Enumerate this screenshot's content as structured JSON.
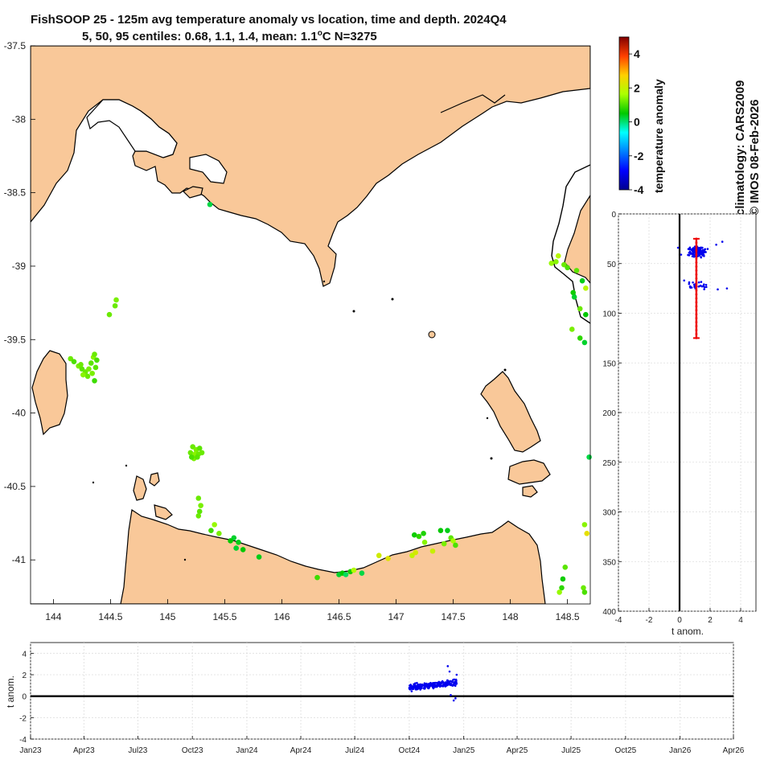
{
  "title": {
    "line1": "FishSOOP 25 - 125m avg temperature anomaly vs location, time and depth. 2024Q4",
    "line2": "5, 50, 95 centiles: 0.68, 1.1, 1.4, mean: 1.1",
    "line2_sup": "o",
    "line2_tail": "C N=3275"
  },
  "side_text": {
    "climatology": "climatology: CARS2009",
    "credit": "© IMOS 08-Feb-2026"
  },
  "colors": {
    "land": "#f9c899",
    "coast": "#000000",
    "series": "#0000ee",
    "median_bar": "#ee0000"
  },
  "chart_data": [
    {
      "id": "map",
      "type": "scatter",
      "title": "FishSOOP 25 - 125m avg temperature anomaly vs location",
      "xlabel": "",
      "ylabel": "",
      "xlim": [
        143.8,
        148.7
      ],
      "ylim": [
        -41.3,
        -37.5
      ],
      "xticks": [
        144,
        144.5,
        145,
        145.5,
        146,
        146.5,
        147,
        147.5,
        148,
        148.5
      ],
      "xtick_labels": [
        "144",
        "144.5",
        "145",
        "145.5",
        "146",
        "146.5",
        "147",
        "147.5",
        "148",
        "148.5"
      ],
      "yticks": [
        -37.5,
        -38,
        -38.5,
        -39,
        -39.5,
        -40,
        -40.5,
        -41
      ],
      "ytick_labels": [
        "-37.5",
        "-38",
        "-38.5",
        "-39",
        "-39.5",
        "-40",
        "-40.5",
        "-41"
      ],
      "points": [
        {
          "lon": 145.37,
          "lat": -38.58,
          "anom": 0.2
        },
        {
          "lon": 144.55,
          "lat": -39.23,
          "anom": 1.3
        },
        {
          "lon": 144.54,
          "lat": -39.27,
          "anom": 1.2
        },
        {
          "lon": 144.49,
          "lat": -39.33,
          "anom": 1.2
        },
        {
          "lon": 144.15,
          "lat": -39.63,
          "anom": 1.2
        },
        {
          "lon": 144.18,
          "lat": -39.65,
          "anom": 1.0
        },
        {
          "lon": 144.22,
          "lat": -39.68,
          "anom": 1.3
        },
        {
          "lon": 144.25,
          "lat": -39.7,
          "anom": 1.1
        },
        {
          "lon": 144.28,
          "lat": -39.72,
          "anom": 1.2
        },
        {
          "lon": 144.31,
          "lat": -39.7,
          "anom": 1.3
        },
        {
          "lon": 144.33,
          "lat": -39.66,
          "anom": 1.1
        },
        {
          "lon": 144.35,
          "lat": -39.62,
          "anom": 1.4
        },
        {
          "lon": 144.36,
          "lat": -39.6,
          "anom": 1.2
        },
        {
          "lon": 144.38,
          "lat": -39.64,
          "anom": 1.0
        },
        {
          "lon": 144.3,
          "lat": -39.75,
          "anom": 1.2
        },
        {
          "lon": 144.34,
          "lat": -39.73,
          "anom": 1.3
        },
        {
          "lon": 144.37,
          "lat": -39.69,
          "anom": 1.1
        },
        {
          "lon": 144.26,
          "lat": -39.74,
          "anom": 1.4
        },
        {
          "lon": 144.36,
          "lat": -39.78,
          "anom": 0.9
        },
        {
          "lon": 144.24,
          "lat": -39.67,
          "anom": 1.2
        },
        {
          "lon": 145.22,
          "lat": -40.23,
          "anom": 1.2
        },
        {
          "lon": 145.25,
          "lat": -40.25,
          "anom": 1.3
        },
        {
          "lon": 145.28,
          "lat": -40.24,
          "anom": 1.1
        },
        {
          "lon": 145.2,
          "lat": -40.27,
          "anom": 1.2
        },
        {
          "lon": 145.24,
          "lat": -40.28,
          "anom": 1.4
        },
        {
          "lon": 145.27,
          "lat": -40.28,
          "anom": 1.2
        },
        {
          "lon": 145.23,
          "lat": -40.31,
          "anom": 1.3
        },
        {
          "lon": 145.26,
          "lat": -40.3,
          "anom": 1.1
        },
        {
          "lon": 145.3,
          "lat": -40.27,
          "anom": 1.2
        },
        {
          "lon": 145.21,
          "lat": -40.3,
          "anom": 1.0
        },
        {
          "lon": 145.27,
          "lat": -40.58,
          "anom": 1.2
        },
        {
          "lon": 145.29,
          "lat": -40.63,
          "anom": 1.3
        },
        {
          "lon": 145.28,
          "lat": -40.67,
          "anom": 1.1
        },
        {
          "lon": 145.27,
          "lat": -40.7,
          "anom": 1.2
        },
        {
          "lon": 145.41,
          "lat": -40.76,
          "anom": 1.5
        },
        {
          "lon": 145.38,
          "lat": -40.8,
          "anom": 0.9
        },
        {
          "lon": 145.45,
          "lat": -40.82,
          "anom": 1.3
        },
        {
          "lon": 145.58,
          "lat": -40.85,
          "anom": 0.3
        },
        {
          "lon": 145.55,
          "lat": -40.87,
          "anom": 0.5
        },
        {
          "lon": 145.62,
          "lat": -40.88,
          "anom": 0.4
        },
        {
          "lon": 145.6,
          "lat": -40.92,
          "anom": 0.3
        },
        {
          "lon": 145.66,
          "lat": -40.93,
          "anom": 0.5
        },
        {
          "lon": 145.8,
          "lat": -40.98,
          "anom": 0.4
        },
        {
          "lon": 146.31,
          "lat": -41.12,
          "anom": 0.9
        },
        {
          "lon": 146.5,
          "lat": -41.1,
          "anom": 0.3
        },
        {
          "lon": 146.53,
          "lat": -41.09,
          "anom": 0.5
        },
        {
          "lon": 146.56,
          "lat": -41.1,
          "anom": 0.1
        },
        {
          "lon": 146.6,
          "lat": -41.08,
          "anom": 0.6
        },
        {
          "lon": 146.63,
          "lat": -41.07,
          "anom": 1.7
        },
        {
          "lon": 146.7,
          "lat": -41.09,
          "anom": 0.2
        },
        {
          "lon": 146.85,
          "lat": -40.97,
          "anom": 2.1
        },
        {
          "lon": 146.93,
          "lat": -40.99,
          "anom": 2.3
        },
        {
          "lon": 147.16,
          "lat": -40.83,
          "anom": 0.6
        },
        {
          "lon": 147.2,
          "lat": -40.84,
          "anom": 0.8
        },
        {
          "lon": 147.14,
          "lat": -40.97,
          "anom": 1.9
        },
        {
          "lon": 147.17,
          "lat": -40.95,
          "anom": 2.2
        },
        {
          "lon": 147.24,
          "lat": -40.82,
          "anom": 0.7
        },
        {
          "lon": 147.25,
          "lat": -40.88,
          "anom": 1.4
        },
        {
          "lon": 147.32,
          "lat": -40.94,
          "anom": 2.0
        },
        {
          "lon": 147.39,
          "lat": -40.8,
          "anom": 0.5
        },
        {
          "lon": 147.45,
          "lat": -40.8,
          "anom": 0.4
        },
        {
          "lon": 147.42,
          "lat": -40.89,
          "anom": 1.3
        },
        {
          "lon": 147.48,
          "lat": -40.85,
          "anom": 1.1
        },
        {
          "lon": 147.5,
          "lat": -40.87,
          "anom": 1.6
        },
        {
          "lon": 147.52,
          "lat": -40.9,
          "anom": 1.0
        },
        {
          "lon": 148.42,
          "lat": -38.93,
          "anom": 1.8
        },
        {
          "lon": 148.36,
          "lat": -38.98,
          "anom": 1.5
        },
        {
          "lon": 148.4,
          "lat": -38.97,
          "anom": 1.4
        },
        {
          "lon": 148.47,
          "lat": -38.99,
          "anom": 1.2
        },
        {
          "lon": 148.5,
          "lat": -39.01,
          "anom": 1.0
        },
        {
          "lon": 148.58,
          "lat": -39.03,
          "anom": 1.1
        },
        {
          "lon": 148.63,
          "lat": -39.1,
          "anom": 0.4
        },
        {
          "lon": 148.55,
          "lat": -39.18,
          "anom": 0.6
        },
        {
          "lon": 148.56,
          "lat": -39.21,
          "anom": 0.3
        },
        {
          "lon": 148.66,
          "lat": -39.15,
          "anom": 1.8
        },
        {
          "lon": 148.61,
          "lat": -39.29,
          "anom": 1.2
        },
        {
          "lon": 148.66,
          "lat": -39.33,
          "anom": 0.5
        },
        {
          "lon": 148.54,
          "lat": -39.43,
          "anom": 1.3
        },
        {
          "lon": 148.61,
          "lat": -39.49,
          "anom": 0.8
        },
        {
          "lon": 148.65,
          "lat": -39.52,
          "anom": 0.3
        },
        {
          "lon": 148.69,
          "lat": -40.3,
          "anom": 0.2
        },
        {
          "lon": 148.48,
          "lat": -41.05,
          "anom": 1.1
        },
        {
          "lon": 148.46,
          "lat": -41.13,
          "anom": 0.6
        },
        {
          "lon": 148.45,
          "lat": -41.19,
          "anom": 0.8
        },
        {
          "lon": 148.43,
          "lat": -41.22,
          "anom": 1.5
        },
        {
          "lon": 148.65,
          "lat": -40.76,
          "anom": 1.4
        },
        {
          "lon": 148.67,
          "lat": -40.82,
          "anom": 2.4
        },
        {
          "lon": 148.64,
          "lat": -41.19,
          "anom": 1.2
        },
        {
          "lon": 148.65,
          "lat": -41.22,
          "anom": 1.0
        }
      ]
    },
    {
      "id": "colorbar",
      "type": "heatmap",
      "label": "temperature anomaly",
      "range": [
        -4,
        5
      ],
      "ticks": [
        4,
        2,
        0,
        -2,
        -4
      ],
      "tick_labels": [
        "4",
        "2",
        "0",
        "-2",
        "-4"
      ]
    },
    {
      "id": "depth_profile",
      "type": "scatter",
      "xlabel": "t anom.",
      "ylabel": "",
      "xlim": [
        -4,
        5
      ],
      "ylim": [
        400,
        0
      ],
      "xticks": [
        -4,
        -2,
        0,
        2,
        4
      ],
      "xtick_labels": [
        "-4",
        "-2",
        "0",
        "2",
        "4"
      ],
      "yticks": [
        0,
        50,
        100,
        150,
        200,
        250,
        300,
        350,
        400
      ],
      "ytick_labels": [
        "0",
        "50",
        "100",
        "150",
        "200",
        "250",
        "300",
        "350",
        "400"
      ],
      "zero_line": 0,
      "median_bar": {
        "x": 1.1,
        "y_from": 25,
        "y_to": 125
      },
      "cluster_upper": {
        "x_center": 1.2,
        "x_spread": 0.8,
        "y_center": 38,
        "y_spread": 7,
        "n": 160
      },
      "cluster_lower": {
        "x_center": 1.3,
        "x_spread": 0.9,
        "y_center": 72,
        "y_spread": 5,
        "n": 30
      },
      "outliers": [
        [
          2.8,
          28
        ],
        [
          2.4,
          31
        ],
        [
          -0.1,
          34
        ],
        [
          0.1,
          41
        ],
        [
          2.5,
          76
        ],
        [
          3.1,
          75
        ],
        [
          0.3,
          67
        ]
      ]
    },
    {
      "id": "time_series",
      "type": "scatter",
      "xlabel": "",
      "ylabel": "t anom.",
      "xlim": [
        "2023-01-01",
        "2026-04-01"
      ],
      "ylim": [
        -4,
        5
      ],
      "xticks": [
        "2023-01-01",
        "2023-04-01",
        "2023-07-01",
        "2023-10-01",
        "2024-01-01",
        "2024-04-01",
        "2024-07-01",
        "2024-10-01",
        "2025-01-01",
        "2025-04-01",
        "2025-07-01",
        "2025-10-01",
        "2026-01-01",
        "2026-04-01"
      ],
      "xtick_labels": [
        "Jan23",
        "Apr23",
        "Jul23",
        "Oct23",
        "Jan24",
        "Apr24",
        "Jul24",
        "Oct24",
        "Jan25",
        "Apr25",
        "Jul25",
        "Oct25",
        "Jan26",
        "Apr26"
      ],
      "yticks": [
        -4,
        -2,
        0,
        2,
        4
      ],
      "ytick_labels": [
        "-4",
        "-2",
        "0",
        "2",
        "4"
      ],
      "zero_line": 0,
      "band": {
        "start": "2024-10-01",
        "end": "2024-12-20",
        "y_start": 0.8,
        "y_end": 1.3,
        "spread": 0.45,
        "n": 240
      },
      "outliers": [
        [
          "2024-12-05",
          2.8
        ],
        [
          "2024-12-08",
          2.3
        ],
        [
          "2024-12-15",
          -0.4
        ],
        [
          "2024-12-18",
          -0.2
        ],
        [
          "2024-12-10",
          0.1
        ],
        [
          "2024-12-20",
          2.0
        ]
      ]
    }
  ]
}
